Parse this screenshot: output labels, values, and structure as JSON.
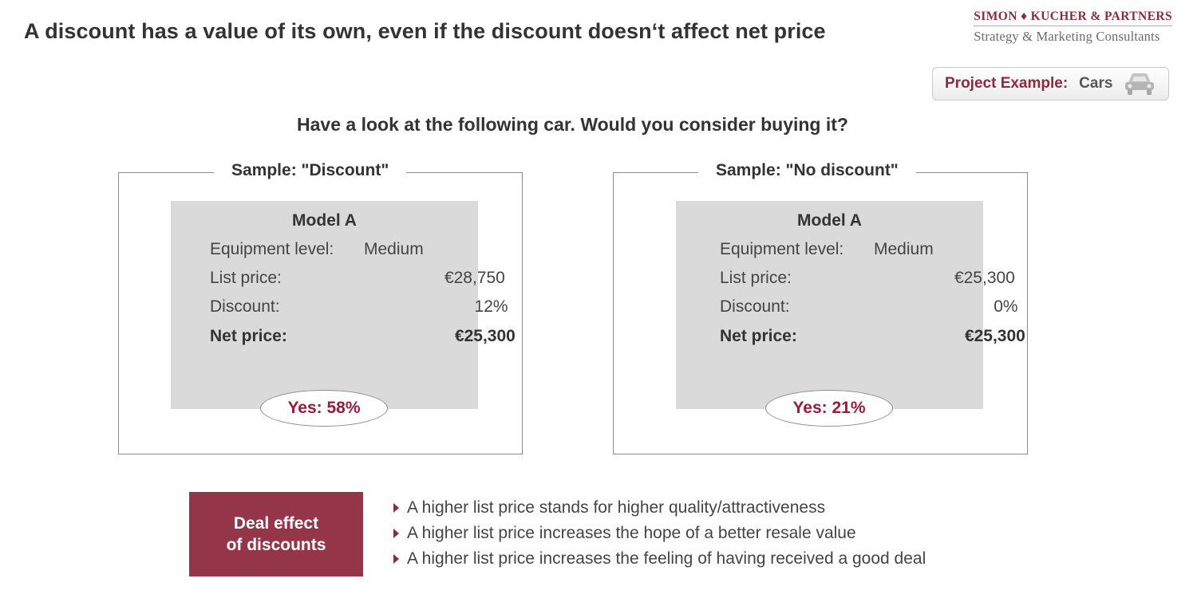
{
  "title": "A discount has a value of its own, even if the discount doesn‘t affect net price",
  "brand": {
    "name": "SIMON ♦ KUCHER & PARTNERS",
    "tagline": "Strategy & Marketing Consultants"
  },
  "project": {
    "label": "Project Example:",
    "value": "Cars",
    "icon": "car-icon"
  },
  "question": "Have a look at the following car. Would you consider buying it?",
  "samples": [
    {
      "label": "Sample: \"Discount\"",
      "model": "Model A",
      "rows": [
        {
          "label": "Equipment level:",
          "value": "Medium"
        },
        {
          "label": "List price:",
          "value": "€28,750"
        },
        {
          "label": "Discount:",
          "value": "12%"
        },
        {
          "label": "Net price:",
          "value": "€25,300"
        }
      ],
      "result": "Yes: 58%"
    },
    {
      "label": "Sample: \"No discount\"",
      "model": "Model A",
      "rows": [
        {
          "label": "Equipment level:",
          "value": "Medium"
        },
        {
          "label": "List price:",
          "value": "€25,300"
        },
        {
          "label": "Discount:",
          "value": "0%"
        },
        {
          "label": "Net price:",
          "value": "€25,300"
        }
      ],
      "result": "Yes: 21%"
    }
  ],
  "deal_effect": {
    "label_line1": "Deal effect",
    "label_line2": "of discounts",
    "bullets": [
      "A higher list price stands for higher quality/attractiveness",
      "A higher list price increases the hope of a better resale value",
      "A higher list price increases the feeling of having received a good deal"
    ]
  },
  "colors": {
    "accent": "#8f2a3c",
    "deal_box": "#94354a",
    "card": "#dadada",
    "result_text": "#9a1b3b"
  }
}
